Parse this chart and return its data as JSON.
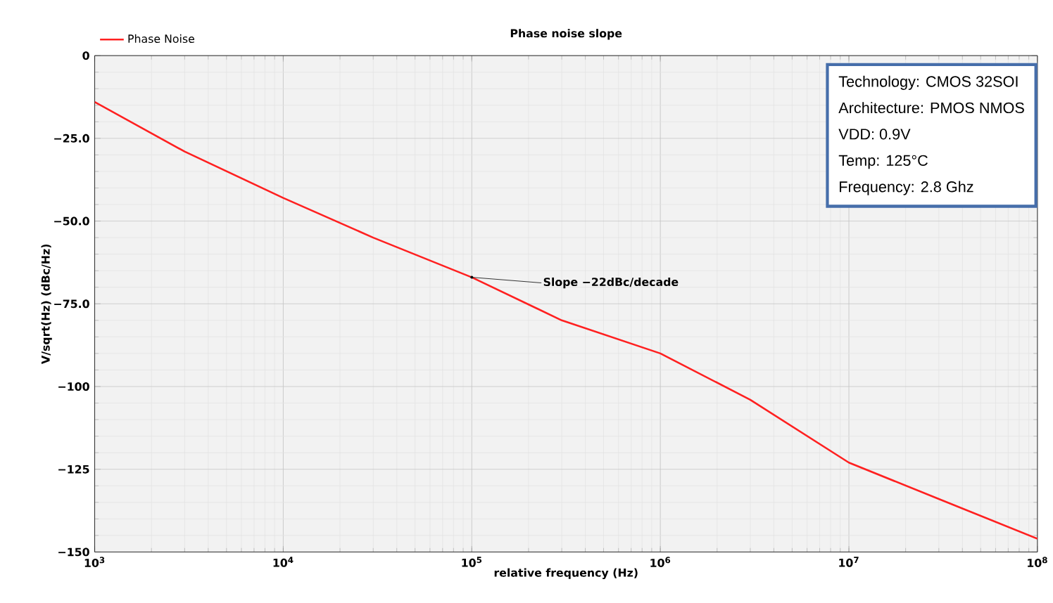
{
  "chart_data": {
    "type": "line",
    "title": "Phase noise slope",
    "xlabel": "relative frequency (Hz)",
    "ylabel": "V/sqrt(Hz) (dBc/Hz)",
    "log": "x",
    "grid": true,
    "legend": "top left",
    "marker": "none",
    "line_style": "solid",
    "xlim": [
      1000,
      100000000
    ],
    "ylim": [
      -150,
      0
    ],
    "xticks": [
      {
        "value": 1000,
        "label": "10$^{3}$"
      },
      {
        "value": 10000,
        "label": "10$^{4}$"
      },
      {
        "value": 100000,
        "label": "10$^{5}$"
      },
      {
        "value": 1000000,
        "label": "10$^{6}$"
      },
      {
        "value": 10000000,
        "label": "10$^{7}$"
      },
      {
        "value": 100000000,
        "label": "10$^{8}$"
      }
    ],
    "yticks": [
      {
        "value": 0,
        "label": "0"
      },
      {
        "value": -25,
        "label": "−25.0"
      },
      {
        "value": -50,
        "label": "−50.0"
      },
      {
        "value": -75,
        "label": "−75.0"
      },
      {
        "value": -100,
        "label": "−100"
      },
      {
        "value": -125,
        "label": "−125"
      },
      {
        "value": -150,
        "label": "−150"
      }
    ],
    "x": [
      1000,
      3000,
      10000,
      30000,
      100000,
      300000,
      1000000,
      3000000,
      10000000,
      30000000,
      100000000
    ],
    "series": [
      {
        "name": "Phase Noise",
        "color": "#ff2020",
        "values": [
          -14,
          -29,
          -43,
          -55,
          -67,
          -80,
          -90,
          -104,
          -123,
          -134,
          -146
        ]
      }
    ],
    "annotations": [
      "Technology: CMOS 32SOI",
      "Architecture: PMOS NMOS",
      "VDD: 0.9V",
      "Temp: 125°C",
      "Frequency: 2.8 Ghz",
      {
        "text": "Slope −22dBc/decade",
        "x": 100000,
        "y": -67
      }
    ]
  }
}
